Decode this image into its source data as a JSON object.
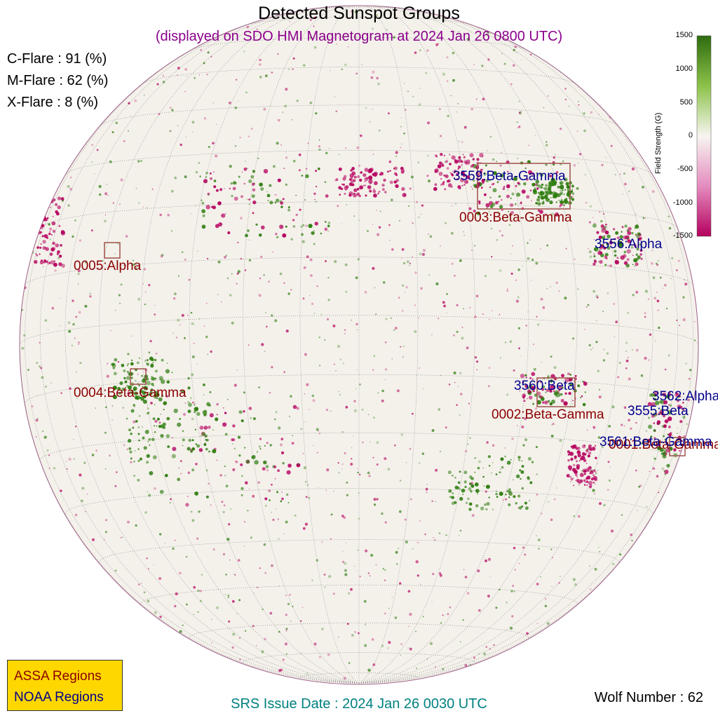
{
  "title": "Detected Sunspot Groups",
  "subtitle": "(displayed on SDO HMI Magnetogram at 2024 Jan 26 0800 UTC)",
  "flare_probabilities": [
    {
      "label": "C-Flare : 91 (%)"
    },
    {
      "label": "M-Flare : 62 (%)"
    },
    {
      "label": "X-Flare :  8 (%)"
    }
  ],
  "colorbar": {
    "title": "Field Strength (G)",
    "ticks": [
      "1500",
      "1000",
      "500",
      "0",
      "-500",
      "-1000",
      "-1500"
    ],
    "colors": {
      "positive": "#2e7d0f",
      "zero": "#f7f5f0",
      "negative": "#b5005e"
    }
  },
  "assa_regions": [
    {
      "label": "0003:Beta-Gamma"
    },
    {
      "label": "0005:Alpha"
    },
    {
      "label": "0004:Beta-Gamma"
    },
    {
      "label": "0002:Beta-Gamma"
    },
    {
      "label": "0001:Beta-Gamma"
    }
  ],
  "noaa_regions": [
    {
      "label": "3559:Beta-Gamma"
    },
    {
      "label": "3556:Alpha"
    },
    {
      "label": "3560:Beta"
    },
    {
      "label": "3562:Alpha"
    },
    {
      "label": "3555:Beta"
    },
    {
      "label": "3561:Beta-Gamma"
    }
  ],
  "legend": {
    "assa": "ASSA Regions",
    "noaa": "NOAA Regions"
  },
  "srs_issue_date": "SRS Issue Date : 2024 Jan 26 0030 UTC",
  "wolf_number": "Wolf Number : 62"
}
